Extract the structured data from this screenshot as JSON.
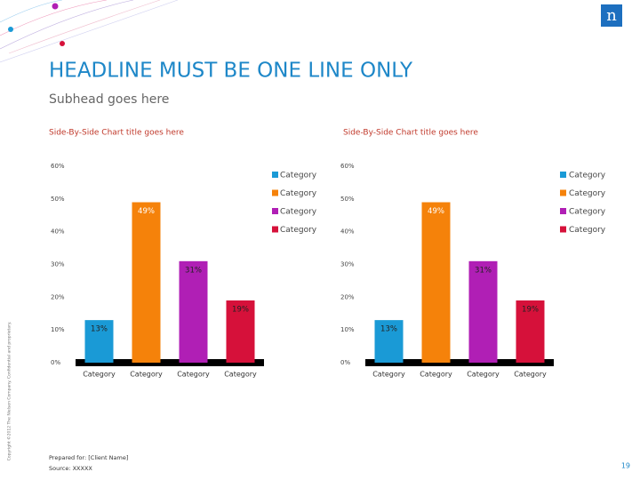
{
  "logo": "n",
  "headline": "HEADLINE MUST BE ONE LINE ONLY",
  "subhead": "Subhead goes here",
  "copyright": "Copyright ©2012 The Nielsen Company. Confidential and proprietary.",
  "footer": {
    "prepared_for": "Prepared for: [Client Name]",
    "source": "Source: XXXXX"
  },
  "page_number": "19",
  "chart_data": [
    {
      "type": "bar",
      "title": "Side-By-Side Chart title goes here",
      "categories": [
        "Category",
        "Category",
        "Category",
        "Category"
      ],
      "values": [
        13,
        49,
        31,
        19
      ],
      "value_labels": [
        "13%",
        "49%",
        "31%",
        "19%"
      ],
      "colors": [
        "#1a9ad6",
        "#f5820a",
        "#b01fb5",
        "#d6113a"
      ],
      "ylim": [
        0,
        60
      ],
      "yticks": [
        {
          "value": 0,
          "label": "0%"
        },
        {
          "value": 10,
          "label": "10%"
        },
        {
          "value": 20,
          "label": "20%"
        },
        {
          "value": 30,
          "label": "30%"
        },
        {
          "value": 40,
          "label": "40%"
        },
        {
          "value": 50,
          "label": "50%"
        },
        {
          "value": 60,
          "label": "60%"
        }
      ],
      "legend": "right"
    },
    {
      "type": "bar",
      "title": "Side-By-Side Chart title goes here",
      "categories": [
        "Category",
        "Category",
        "Category",
        "Category"
      ],
      "values": [
        13,
        49,
        31,
        19
      ],
      "value_labels": [
        "13%",
        "49%",
        "31%",
        "19%"
      ],
      "colors": [
        "#1a9ad6",
        "#f5820a",
        "#b01fb5",
        "#d6113a"
      ],
      "ylim": [
        0,
        60
      ],
      "yticks": [
        {
          "value": 0,
          "label": "0%"
        },
        {
          "value": 10,
          "label": "10%"
        },
        {
          "value": 20,
          "label": "20%"
        },
        {
          "value": 30,
          "label": "30%"
        },
        {
          "value": 40,
          "label": "40%"
        },
        {
          "value": 50,
          "label": "50%"
        },
        {
          "value": 60,
          "label": "60%"
        }
      ],
      "legend": "right"
    }
  ]
}
